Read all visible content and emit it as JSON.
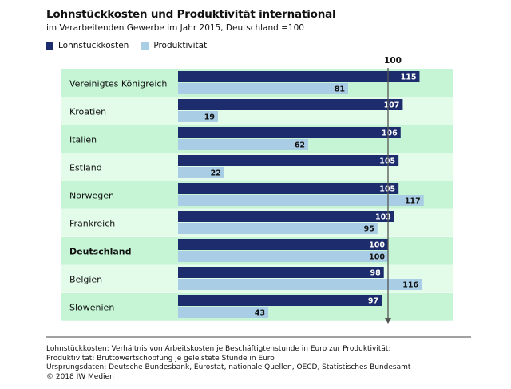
{
  "title": "Lohnstückkosten und Produktivität international",
  "subtitle": "im Verarbeitenden Gewerbe im Jahr 2015, Deutschland =100",
  "colors": {
    "lohn": "#1c2c6c",
    "prod": "#a9cde4",
    "row_dark": "#c5f5d5",
    "row_light": "#e3fbe9",
    "axis": "#555555"
  },
  "chart_data": {
    "type": "bar",
    "orientation": "horizontal",
    "reference_line": 100,
    "reference_label": "100",
    "categories": [
      "Vereinigtes Königreich",
      "Kroatien",
      "Italien",
      "Estland",
      "Norwegen",
      "Frankreich",
      "Deutschland",
      "Belgien",
      "Slowenien"
    ],
    "highlight_category": "Deutschland",
    "series": [
      {
        "name": "Lohnstückkosten",
        "values": [
          115,
          107,
          106,
          105,
          105,
          103,
          100,
          98,
          97
        ]
      },
      {
        "name": "Produktivität",
        "values": [
          81,
          19,
          62,
          22,
          117,
          95,
          100,
          116,
          43
        ]
      }
    ],
    "xlim": [
      0,
      120
    ],
    "legend": "top-left"
  },
  "footer": {
    "line1": "Lohnstückkosten: Verhältnis von Arbeitskosten je Beschäftigtenstunde in Euro zur Produktivität;",
    "line2": "Produktivität: Bruttowertschöpfung je geleistete Stunde in Euro",
    "line3": "Ursprungsdaten: Deutsche Bundesbank, Eurostat, nationale Quellen, OECD, Statistisches Bundesamt",
    "line4": "© 2018 IW Medien"
  }
}
